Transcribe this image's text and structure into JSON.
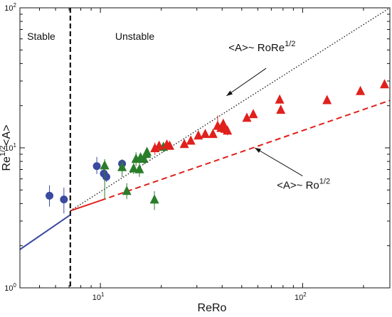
{
  "chart_data": {
    "type": "scatter",
    "xlabel": "ReRo",
    "ylabel": {
      "base": "Re",
      "sup": "1/2",
      "tail": "<A>"
    },
    "xscale": "log",
    "yscale": "log",
    "xlim": [
      4.0,
      270
    ],
    "ylim": [
      1,
      100
    ],
    "x_ticks": [
      {
        "base": "10",
        "exp": "1",
        "value": 10
      },
      {
        "base": "10",
        "exp": "2",
        "value": 100
      }
    ],
    "y_ticks": [
      {
        "base": "10",
        "exp": "0",
        "value": 1
      },
      {
        "base": "10",
        "exp": "1",
        "value": 10
      },
      {
        "base": "10",
        "exp": "2",
        "value": 100
      }
    ],
    "grid": false,
    "regions": {
      "stable_label": "Stable",
      "unstable_label": "Unstable",
      "boundary_x": 7.1
    },
    "annotations": [
      {
        "text": "<A>~ RoRe",
        "sup": "1/2",
        "text_x": 63,
        "text_y": 49,
        "arrow_from": [
          66,
          37
        ],
        "arrow_to": [
          42,
          23.5
        ]
      },
      {
        "text": "<A>~ Ro",
        "sup": "1/2",
        "text_x": 101,
        "text_y": 5.1,
        "arrow_from": [
          100,
          6.3
        ],
        "arrow_to": [
          58,
          10
        ]
      }
    ],
    "lines": [
      {
        "name": "stable-fit",
        "color": "#3b4aa0",
        "style": "solid",
        "points": [
          [
            4.0,
            1.88
          ],
          [
            7.1,
            3.32
          ]
        ]
      },
      {
        "name": "unstable-fit-red",
        "color": "#e0201c",
        "style": "solid",
        "points": [
          [
            7.1,
            3.55
          ],
          [
            10.0,
            4.2
          ]
        ]
      },
      {
        "name": "ro-half-scaling",
        "color": "#e0201c",
        "style": "dashed",
        "points": [
          [
            10.0,
            4.2
          ],
          [
            270,
            21.8
          ]
        ]
      },
      {
        "name": "rore-half-scaling",
        "color": "#222222",
        "style": "dotted",
        "points": [
          [
            7.1,
            3.55
          ],
          [
            270,
            100
          ]
        ]
      }
    ],
    "series": [
      {
        "marker": "circle",
        "color": "#3b4aa0",
        "points": [
          {
            "x": 5.6,
            "y": 4.55,
            "err": [
              3.8,
              5.4
            ]
          },
          {
            "x": 6.6,
            "y": 4.28,
            "err": [
              3.4,
              5.2
            ]
          },
          {
            "x": 9.6,
            "y": 7.4,
            "err": [
              6.5,
              8.6
            ]
          },
          {
            "x": 10.4,
            "y": 6.55,
            "err": [
              6.0,
              7.2
            ]
          },
          {
            "x": 10.7,
            "y": 6.2,
            "err": [
              5.7,
              6.7
            ]
          },
          {
            "x": 12.8,
            "y": 7.7,
            "err": [
              7.2,
              8.2
            ]
          }
        ]
      },
      {
        "marker": "triangle",
        "color": "#2a7d2a",
        "points": [
          {
            "x": 10.5,
            "y": 7.45,
            "err": [
              4.3,
              8.3
            ]
          },
          {
            "x": 12.8,
            "y": 7.25,
            "err": [
              6.2,
              8.3
            ]
          },
          {
            "x": 13.5,
            "y": 4.9,
            "err": [
              4.3,
              5.6
            ]
          },
          {
            "x": 14.6,
            "y": 7.1,
            "err": [
              6.5,
              7.8
            ]
          },
          {
            "x": 15.0,
            "y": 8.3,
            "err": [
              7.4,
              9.3
            ]
          },
          {
            "x": 15.6,
            "y": 7.0,
            "err": [
              6.2,
              7.9
            ]
          },
          {
            "x": 15.8,
            "y": 8.5,
            "err": [
              7.9,
              9.1
            ]
          },
          {
            "x": 16.4,
            "y": 8.3,
            "err": [
              7.6,
              9.1
            ]
          },
          {
            "x": 16.9,
            "y": 9.0,
            "err": [
              8.4,
              9.7
            ]
          },
          {
            "x": 17.0,
            "y": 9.3,
            "err": [
              8.7,
              10.0
            ]
          },
          {
            "x": 18.5,
            "y": 4.25,
            "err": [
              3.6,
              4.9
            ]
          },
          {
            "x": 20.5,
            "y": 10.1,
            "err": [
              9.3,
              10.9
            ]
          }
        ]
      },
      {
        "marker": "triangle",
        "color": "#e0201c",
        "points": [
          {
            "x": 18.6,
            "y": 9.9,
            "err": [
              8.9,
              10.9
            ]
          },
          {
            "x": 19.5,
            "y": 10.3,
            "err": [
              9.4,
              11.2
            ]
          },
          {
            "x": 21.3,
            "y": 10.5,
            "err": [
              9.7,
              11.3
            ]
          },
          {
            "x": 22.0,
            "y": 10.3,
            "err": [
              9.7,
              11.0
            ]
          },
          {
            "x": 26.0,
            "y": 10.6,
            "err": [
              10.2,
              11.1
            ]
          },
          {
            "x": 28.0,
            "y": 11.2,
            "err": [
              10.7,
              11.8
            ]
          },
          {
            "x": 30.5,
            "y": 12.2,
            "err": [
              11.7,
              12.8
            ]
          },
          {
            "x": 33.0,
            "y": 12.5,
            "err": [
              12.0,
              13.1
            ]
          },
          {
            "x": 36.0,
            "y": 12.5,
            "err": [
              12.0,
              13.1
            ]
          },
          {
            "x": 38.0,
            "y": 14.3,
            "err": [
              13.2,
              17.0
            ]
          },
          {
            "x": 39.5,
            "y": 13.8,
            "err": [
              12.8,
              14.9
            ]
          },
          {
            "x": 40.5,
            "y": 14.8,
            "err": [
              13.6,
              16.0
            ]
          },
          {
            "x": 41.5,
            "y": 13.6,
            "err": [
              12.6,
              14.6
            ]
          },
          {
            "x": 42.5,
            "y": 13.2,
            "err": [
              12.3,
              14.2
            ]
          },
          {
            "x": 53.0,
            "y": 16.3,
            "err": [
              15.6,
              17.0
            ]
          },
          {
            "x": 57.0,
            "y": 17.3,
            "err": [
              16.5,
              18.1
            ]
          },
          {
            "x": 77.0,
            "y": 22.0,
            "err": [
              20.9,
              23.2
            ]
          },
          {
            "x": 78.0,
            "y": 18.6,
            "err": [
              17.8,
              19.5
            ]
          },
          {
            "x": 132.0,
            "y": 21.8,
            "err": [
              21.0,
              22.7
            ]
          },
          {
            "x": 193.0,
            "y": 25.3,
            "err": [
              24.4,
              26.3
            ]
          },
          {
            "x": 254.0,
            "y": 28.3,
            "err": [
              27.3,
              29.4
            ]
          }
        ]
      }
    ]
  }
}
